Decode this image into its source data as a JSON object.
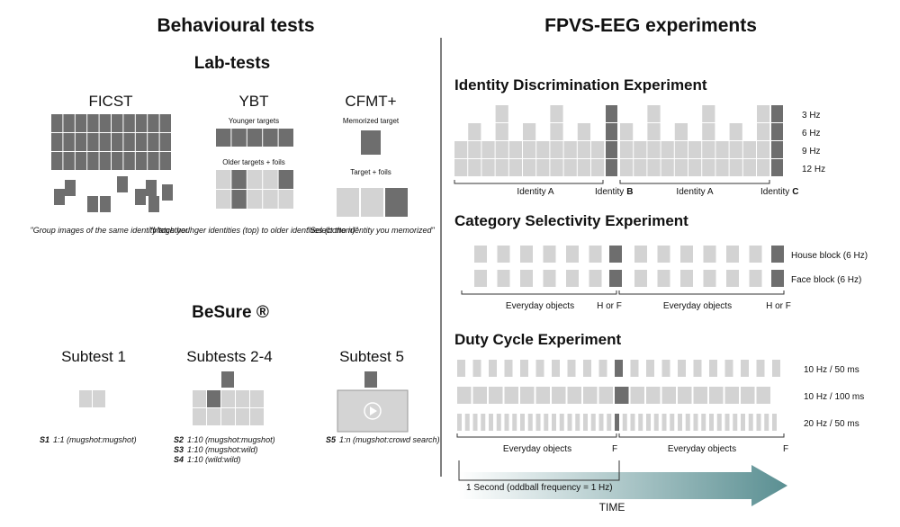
{
  "left": {
    "title": "Behavioural tests",
    "lab_tests": {
      "title": "Lab-tests",
      "tests": [
        {
          "name": "FICST",
          "caption": "\"Group images of the same identity together\""
        },
        {
          "name": "YBT",
          "top_label": "Younger targets",
          "bottom_label": "Older targets + foils",
          "caption": "\"Match younger identities (top) to older identities (bottom)\""
        },
        {
          "name": "CFMT+",
          "top_label": "Memorized target",
          "bottom_label": "Target + foils",
          "caption": "\"Select the identity you memorized\""
        }
      ]
    },
    "besure": {
      "title": "BeSure ®",
      "subtests": [
        {
          "name": "Subtest 1",
          "items": [
            {
              "code": "S1",
              "text": "1:1 (mugshot:mugshot)"
            }
          ]
        },
        {
          "name": "Subtests 2-4",
          "items": [
            {
              "code": "S2",
              "text": "1:10 (mugshot:mugshot)"
            },
            {
              "code": "S3",
              "text": "1:10 (mugshot:wild)"
            },
            {
              "code": "S4",
              "text": "1:10 (wild:wild)"
            }
          ]
        },
        {
          "name": "Subtest 5",
          "items": [
            {
              "code": "S5",
              "text": "1:n (mugshot:crowd search)"
            }
          ]
        }
      ]
    }
  },
  "right": {
    "title": "FPVS-EEG experiments",
    "identity": {
      "title": "Identity Discrimination Experiment",
      "rates": [
        "3 Hz",
        "6 Hz",
        "9 Hz",
        "12 Hz"
      ],
      "labels": [
        "Identity A",
        "Identity",
        "B",
        "Identity A",
        "Identity",
        "C"
      ]
    },
    "category": {
      "title": "Category Selectivity Experiment",
      "rows": [
        "House block (6 Hz)",
        "Face block (6 Hz)"
      ],
      "labels": [
        "Everyday objects",
        "H or F",
        "Everyday objects",
        "H or F"
      ]
    },
    "duty": {
      "title": "Duty Cycle Experiment",
      "rows": [
        "10 Hz / 50 ms",
        "10 Hz / 100 ms",
        "20 Hz / 50 ms"
      ],
      "labels": [
        "Everyday objects",
        "F",
        "Everyday objects",
        "F"
      ],
      "second": "1 Second (oddball frequency = 1 Hz)",
      "time": "TIME"
    }
  }
}
